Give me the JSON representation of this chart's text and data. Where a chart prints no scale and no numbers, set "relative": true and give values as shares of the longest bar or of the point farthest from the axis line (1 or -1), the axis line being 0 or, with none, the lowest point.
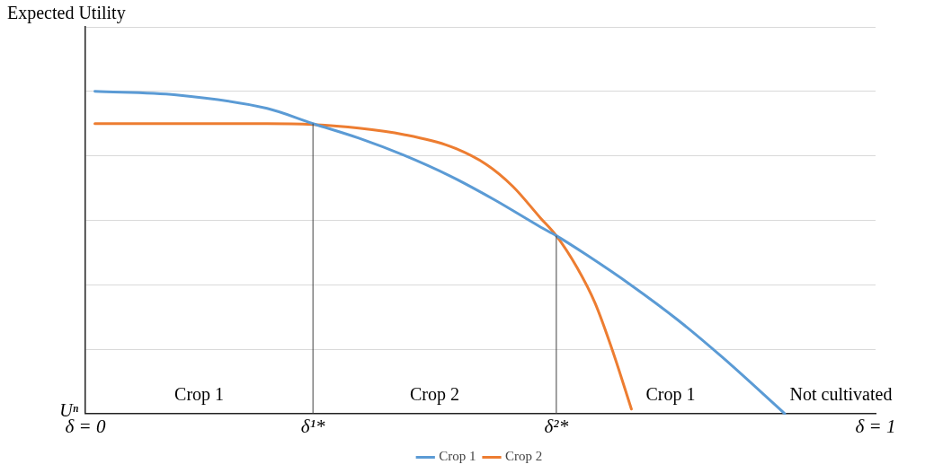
{
  "chart_data": {
    "type": "line",
    "ylabel": "Expected Utility",
    "relative": true,
    "grid": "y",
    "legend": "bottom",
    "marker": "none",
    "line_style": "solid",
    "xlim": [
      0,
      1
    ],
    "xticks": [
      {
        "value": 0,
        "label": "δ = 0"
      },
      {
        "value": 0.288,
        "label": "δ¹*"
      },
      {
        "value": 0.596,
        "label": "δ²*"
      },
      {
        "value": 1,
        "label": "δ = 1"
      }
    ],
    "series": [
      {
        "name": "Crop 1",
        "color": "#5b9bd5",
        "x": [
          0.012,
          0.115,
          0.23,
          0.288,
          0.346,
          0.403,
          0.461,
          0.518,
          0.576,
          0.596,
          0.634,
          0.691,
          0.749,
          0.806,
          0.885
        ],
        "values": [
          1,
          0.989,
          0.947,
          0.9,
          0.855,
          0.802,
          0.738,
          0.663,
          0.579,
          0.552,
          0.493,
          0.398,
          0.292,
          0.175,
          0
        ]
      },
      {
        "name": "Crop 2",
        "color": "#ed7d31",
        "x": [
          0.012,
          0.23,
          0.288,
          0.346,
          0.403,
          0.461,
          0.507,
          0.541,
          0.576,
          0.596,
          0.622,
          0.645,
          0.668,
          0.691
        ],
        "values": [
          0.9,
          0.9,
          0.897,
          0.886,
          0.866,
          0.83,
          0.774,
          0.705,
          0.607,
          0.552,
          0.454,
          0.343,
          0.189,
          0.014
        ]
      }
    ],
    "ref_lines": [
      {
        "axis": "x",
        "value": 0.288,
        "color": "#404040"
      },
      {
        "axis": "x",
        "value": 0.596,
        "color": "#404040"
      }
    ],
    "annotations": [
      "Uⁿ",
      "Crop 1",
      "Crop 2",
      "Crop 1",
      "Not cultivated"
    ]
  }
}
